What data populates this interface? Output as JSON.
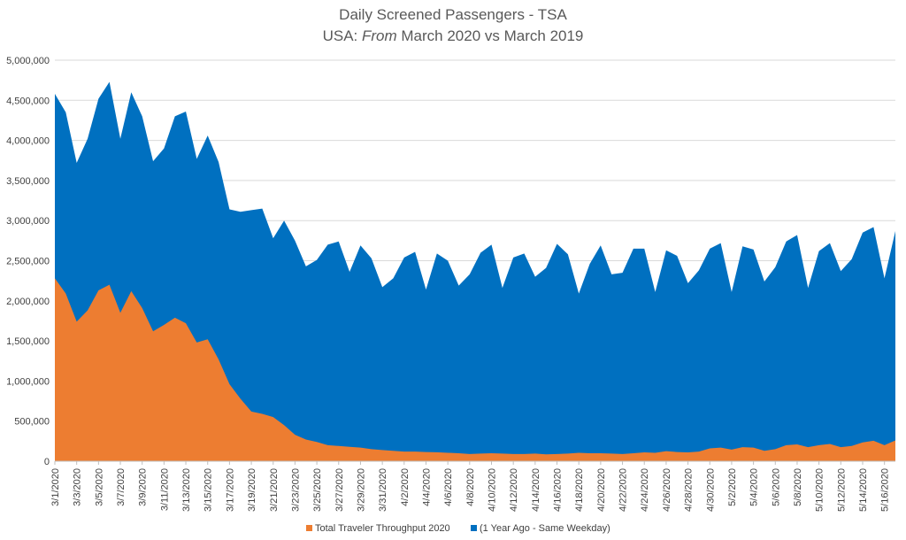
{
  "chart_data": {
    "type": "area",
    "title": "Daily Screened Passengers - TSA",
    "subtitle": {
      "prefix": "USA: ",
      "emphasis": "From",
      "suffix": " March 2020 vs March 2019"
    },
    "xlabel": "",
    "ylabel": "",
    "ylim": [
      0,
      5000000
    ],
    "y_ticks": [
      0,
      500000,
      1000000,
      1500000,
      2000000,
      2500000,
      3000000,
      3500000,
      4000000,
      4500000,
      5000000
    ],
    "y_tick_labels": [
      "0",
      "500,000",
      "1,000,000",
      "1,500,000",
      "2,000,000",
      "2,500,000",
      "3,000,000",
      "3,500,000",
      "4,000,000",
      "4,500,000",
      "5,000,000"
    ],
    "grid": "horizontal",
    "legend_position": "bottom",
    "x_tick_labels": [
      "3/1/2020",
      "3/3/2020",
      "3/5/2020",
      "3/7/2020",
      "3/9/2020",
      "3/11/2020",
      "3/13/2020",
      "3/15/2020",
      "3/17/2020",
      "3/19/2020",
      "3/21/2020",
      "3/23/2020",
      "3/25/2020",
      "3/27/2020",
      "3/29/2020",
      "3/31/2020",
      "4/2/2020",
      "4/4/2020",
      "4/6/2020",
      "4/8/2020",
      "4/10/2020",
      "4/12/2020",
      "4/14/2020",
      "4/16/2020",
      "4/18/2020",
      "4/20/2020",
      "4/22/2020",
      "4/24/2020",
      "4/26/2020",
      "4/28/2020",
      "4/30/2020",
      "5/2/2020",
      "5/4/2020",
      "5/6/2020",
      "5/8/2020",
      "5/10/2020",
      "5/12/2020",
      "5/14/2020",
      "5/16/2020"
    ],
    "series": [
      {
        "name": "(1 Year Ago - Same Weekday)",
        "color": "#0070C0",
        "values": [
          4580000,
          4350000,
          3720000,
          4020000,
          4520000,
          4730000,
          4020000,
          4600000,
          4300000,
          3740000,
          3900000,
          4300000,
          4360000,
          3770000,
          4060000,
          3730000,
          3140000,
          3110000,
          3130000,
          3150000,
          2780000,
          3000000,
          2750000,
          2430000,
          2510000,
          2700000,
          2740000,
          2360000,
          2690000,
          2530000,
          2170000,
          2280000,
          2540000,
          2610000,
          2140000,
          2590000,
          2500000,
          2190000,
          2330000,
          2600000,
          2700000,
          2160000,
          2540000,
          2590000,
          2300000,
          2410000,
          2710000,
          2580000,
          2090000,
          2460000,
          2690000,
          2330000,
          2350000,
          2650000,
          2650000,
          2110000,
          2630000,
          2560000,
          2220000,
          2380000,
          2650000,
          2720000,
          2110000,
          2680000,
          2640000,
          2240000,
          2420000,
          2740000,
          2820000,
          2160000,
          2620000,
          2720000,
          2370000,
          2520000,
          2850000,
          2920000,
          2280000,
          2870000
        ]
      },
      {
        "name": "Total Traveler Throughput 2020",
        "color": "#ED7D31",
        "values": [
          2280000,
          2090000,
          1740000,
          1880000,
          2130000,
          2200000,
          1850000,
          2120000,
          1910000,
          1620000,
          1700000,
          1790000,
          1720000,
          1480000,
          1520000,
          1270000,
          960000,
          780000,
          620000,
          590000,
          550000,
          450000,
          330000,
          270000,
          240000,
          200000,
          190000,
          180000,
          170000,
          150000,
          140000,
          130000,
          120000,
          120000,
          115000,
          112000,
          105000,
          100000,
          90000,
          95000,
          100000,
          95000,
          90000,
          90000,
          95000,
          85000,
          90000,
          95000,
          105000,
          100000,
          100000,
          95000,
          90000,
          100000,
          110000,
          105000,
          125000,
          115000,
          110000,
          120000,
          160000,
          170000,
          145000,
          175000,
          170000,
          130000,
          150000,
          200000,
          210000,
          175000,
          200000,
          215000,
          175000,
          190000,
          235000,
          255000,
          200000,
          260000
        ]
      }
    ],
    "legend": [
      {
        "label": "Total Traveler Throughput 2020",
        "color": "#ED7D31"
      },
      {
        "label": "(1 Year Ago - Same Weekday)",
        "color": "#0070C0"
      }
    ]
  }
}
